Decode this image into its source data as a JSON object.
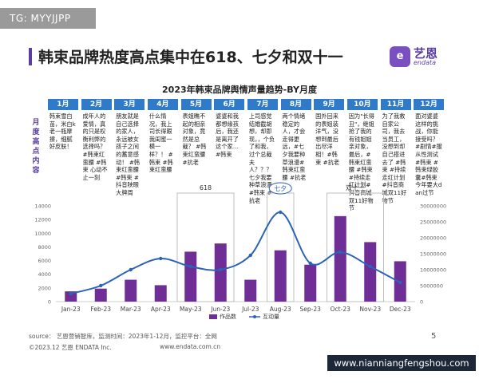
{
  "header": {
    "tag": "TG: MYYJJPP",
    "title": "韩束品牌热度高点集中在618、七夕和双十一",
    "logo_cn": "艺恩",
    "logo_en": "endata"
  },
  "timeline": {
    "side_label": [
      "月",
      "度",
      "高",
      "点",
      "内",
      "容"
    ],
    "months": [
      {
        "label": "1月",
        "content": "韩束雪白苗，米白k老一瓶摩擦，细腻好皮肤！"
      },
      {
        "label": "2月",
        "content": "成年人的爱情，真的只是权衡利弊的选择吗？#韩束红蛮腰 #韩束 心动不止一刻"
      },
      {
        "label": "3月",
        "content": "朋友就是自己选择的家人，永远被女孩子之间的蓄意感动！ #韩束红蛮腰 #韩束 #抖音陕眼大牌周"
      },
      {
        "label": "4月",
        "content": "什么情况，我上司长得跟我闺蜜一模一样？！ #韩束 #韩束红蛮腰"
      },
      {
        "label": "5月",
        "content": "表姐瞧不起的相亲对象，竟然是总裁？ #韩束红蛮腰 #抗老"
      },
      {
        "label": "6月",
        "content": "婆婆和我都想缘孩后，我还是离开了这个家…#韩束"
      },
      {
        "label": "7月",
        "content": "上司感觉结婚截胡想，却即现，，个负了和我，过个总裁夫人？？？七夕我要种草浪漫#韩束 #抗老"
      },
      {
        "label": "8月",
        "content": "两个情绪稳定的人，才会走得更远，#七夕我要种草浪漫#韩束红蛮腰 #抗老"
      },
      {
        "label": "9月",
        "content": "国外回来的表姐装洋气，没想到最后出尽洋相！#韩束 #抗老"
      },
      {
        "label": "10月",
        "content": "因为\"长得丑\"，继姐抢了我的有钱姐姐亲对象，最后，#韩束红蛮腰 #韩束#持续走红计划#抖音商城双11好物节"
      },
      {
        "label": "11月",
        "content": "为了我救自家公司，我去当员工，没想到却自己搭进去了 #韩束 #持续走红计划#抖音商城双11好物节"
      },
      {
        "label": "12月",
        "content": "面对婆婆这样的挑战，你能接受吗？ #剧情#服从性测试#韩束 #韩束绿胶囊#韩束今年要大dan过节"
      }
    ]
  },
  "chart_data": {
    "type": "bar+line",
    "title": "2023年韩束品牌舆情声量趋势-BY月度",
    "categories": [
      "Jan-23",
      "Feb-23",
      "Mar-23",
      "Apr-23",
      "May-23",
      "Jun-23",
      "Jul-23",
      "Aug-23",
      "Sep-23",
      "Oct-23",
      "Nov-23",
      "Dec-23"
    ],
    "series": [
      {
        "name": "作品数",
        "type": "bar",
        "axis": "left",
        "color": "#6e2e96",
        "values": [
          1500,
          1900,
          3200,
          2400,
          7300,
          8500,
          3200,
          7500,
          5400,
          12500,
          8700,
          5900
        ]
      },
      {
        "name": "互动量",
        "type": "line",
        "axis": "right",
        "color": "#2a63b8",
        "values": [
          2500000,
          5000000,
          10000000,
          13500000,
          11000000,
          10000000,
          14500000,
          28000000,
          12000000,
          15500000,
          11000000,
          6000000
        ]
      }
    ],
    "y_left": {
      "min": 0,
      "max": 14000,
      "ticks": [
        "0",
        "2000",
        "4000",
        "6000",
        "8000",
        "10000",
        "12000",
        "14000"
      ]
    },
    "y_right": {
      "min": 0,
      "max": 30000000,
      "ticks": [
        "0",
        "5000000",
        "10000000",
        "15000000",
        "20000000",
        "25000000",
        "30000000"
      ]
    },
    "highlights": [
      {
        "label": "618",
        "from": "May-23",
        "to": "Jun-23"
      },
      {
        "label": "七夕",
        "from": "Aug-23",
        "to": "Aug-23"
      },
      {
        "label": "双十一",
        "from": "Oct-23",
        "to": "Nov-23"
      }
    ],
    "grid": false,
    "legend_position": "bottom-center"
  },
  "footer": {
    "source": "source： 艺恩营销智库，监测时间：2023年1-12月，监控平台：全网",
    "copyright": "©2023.12 艺恩 ENDATA Inc.",
    "website": "www.endata.com.cn",
    "page": "5"
  },
  "watermark": "www.nianniangfengshou.com",
  "colors": {
    "accent": "#5a3ea0",
    "header_blue": "#2f7bc9",
    "bar": "#6e2e96",
    "line": "#2a63b8",
    "highlight": "#bfbfbf"
  }
}
